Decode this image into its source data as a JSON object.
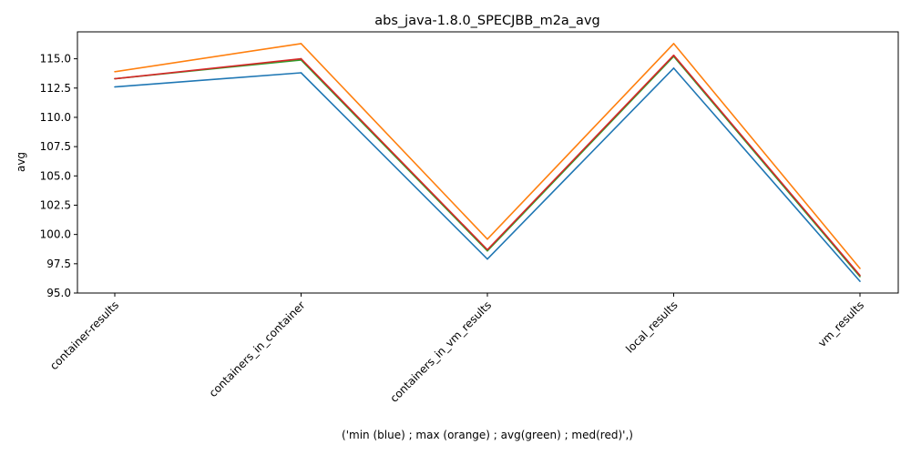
{
  "chart_data": {
    "type": "line",
    "title": "abs_java-1.8.0_SPECJBB_m2a_avg",
    "xlabel": "('min (blue) ; max (orange) ; avg(green) ; med(red)',)",
    "ylabel": "avg",
    "categories": [
      "container-results",
      "containers_in_container",
      "containers_in_vm_results",
      "local_results",
      "vm_results"
    ],
    "ylim": [
      95.0,
      117.3
    ],
    "yticks": [
      "95.0",
      "97.5",
      "100.0",
      "102.5",
      "105.0",
      "107.5",
      "110.0",
      "112.5",
      "115.0"
    ],
    "grid": false,
    "series": [
      {
        "color": "#1f77b4",
        "values": [
          112.6,
          113.8,
          97.9,
          114.2,
          96.0
        ]
      },
      {
        "color": "#ff7f0e",
        "values": [
          113.9,
          116.3,
          99.6,
          116.3,
          97.1
        ]
      },
      {
        "color": "#2ca02c",
        "values": [
          113.3,
          114.9,
          98.6,
          115.2,
          96.4
        ]
      },
      {
        "color": "#d62728",
        "values": [
          113.3,
          115.0,
          98.7,
          115.3,
          96.5
        ]
      }
    ]
  }
}
